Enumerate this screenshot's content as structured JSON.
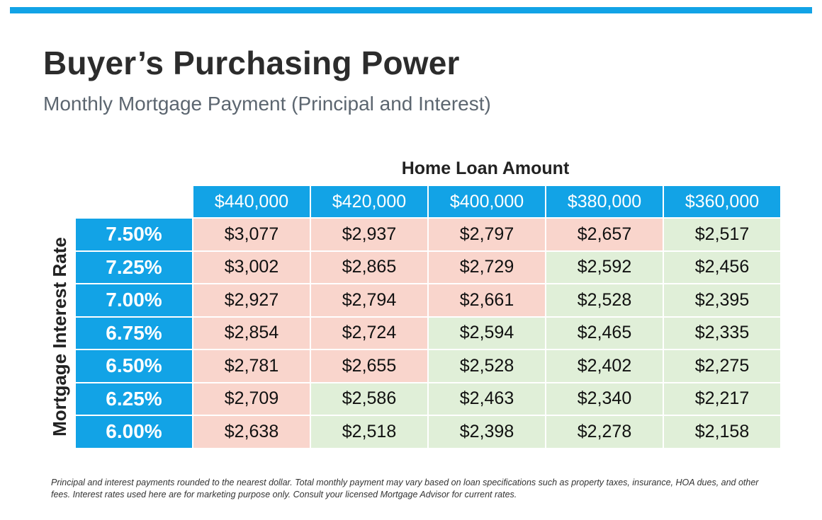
{
  "header": {
    "title": "Buyer’s Purchasing Power",
    "subtitle": "Monthly Mortgage Payment (Principal and Interest)"
  },
  "colors": {
    "accent": "#12a3e6",
    "higher_payment": "#f9d5cc",
    "lower_payment": "#e0efd8"
  },
  "table": {
    "column_group_label": "Home Loan Amount",
    "row_group_label": "Mortgage Interest Rate",
    "columns": [
      "$440,000",
      "$420,000",
      "$400,000",
      "$380,000",
      "$360,000"
    ],
    "rows": [
      {
        "rate": "7.50%",
        "values": [
          "$3,077",
          "$2,937",
          "$2,797",
          "$2,657",
          "$2,517"
        ],
        "shade": [
          "hi",
          "hi",
          "hi",
          "hi",
          "lo"
        ]
      },
      {
        "rate": "7.25%",
        "values": [
          "$3,002",
          "$2,865",
          "$2,729",
          "$2,592",
          "$2,456"
        ],
        "shade": [
          "hi",
          "hi",
          "hi",
          "lo",
          "lo"
        ]
      },
      {
        "rate": "7.00%",
        "values": [
          "$2,927",
          "$2,794",
          "$2,661",
          "$2,528",
          "$2,395"
        ],
        "shade": [
          "hi",
          "hi",
          "hi",
          "lo",
          "lo"
        ]
      },
      {
        "rate": "6.75%",
        "values": [
          "$2,854",
          "$2,724",
          "$2,594",
          "$2,465",
          "$2,335"
        ],
        "shade": [
          "hi",
          "hi",
          "lo",
          "lo",
          "lo"
        ]
      },
      {
        "rate": "6.50%",
        "values": [
          "$2,781",
          "$2,655",
          "$2,528",
          "$2,402",
          "$2,275"
        ],
        "shade": [
          "hi",
          "hi",
          "lo",
          "lo",
          "lo"
        ]
      },
      {
        "rate": "6.25%",
        "values": [
          "$2,709",
          "$2,586",
          "$2,463",
          "$2,340",
          "$2,217"
        ],
        "shade": [
          "hi",
          "lo",
          "lo",
          "lo",
          "lo"
        ]
      },
      {
        "rate": "6.00%",
        "values": [
          "$2,638",
          "$2,518",
          "$2,398",
          "$2,278",
          "$2,158"
        ],
        "shade": [
          "hi",
          "lo",
          "lo",
          "lo",
          "lo"
        ]
      }
    ]
  },
  "footnote": "Principal and interest payments rounded to the nearest dollar. Total monthly payment may vary based on loan specifications such as property taxes, insurance, HOA dues, and other fees. Interest rates used here are for marketing purpose only. Consult your licensed Mortgage Advisor for current rates."
}
